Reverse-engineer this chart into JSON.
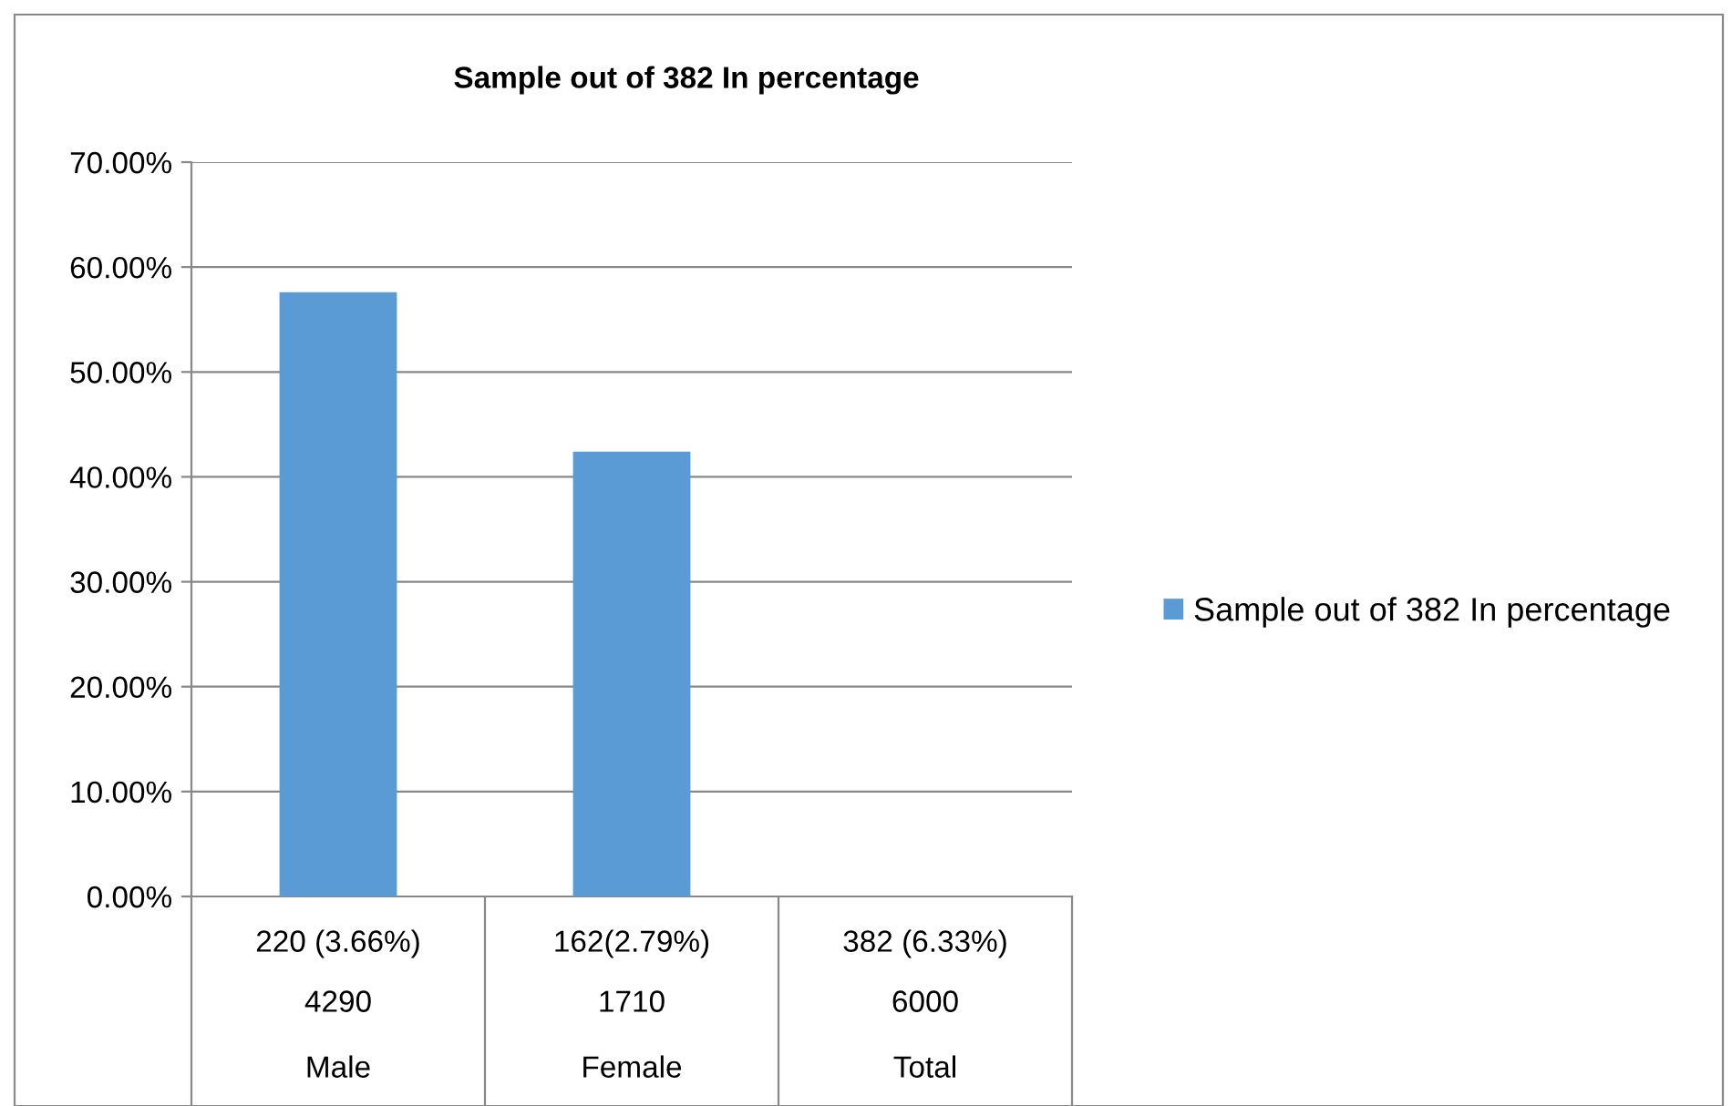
{
  "chart_data": {
    "type": "bar",
    "title": "Sample out of 382 In percentage",
    "categories": [
      "220 (3.66%)\n4290\nMale",
      "162(2.79%)\n1710\nFemale",
      "382 (6.33%)\n6000\nTotal"
    ],
    "series": [
      {
        "name": "Sample out of 382 In percentage",
        "color": "#5b9bd5",
        "values": [
          57.6,
          42.4,
          null
        ]
      }
    ],
    "ylim": [
      0,
      70
    ],
    "yticks": [
      {
        "value": 0,
        "label": "0.00%"
      },
      {
        "value": 10,
        "label": "10.00%"
      },
      {
        "value": 20,
        "label": "20.00%"
      },
      {
        "value": 30,
        "label": "30.00%"
      },
      {
        "value": 40,
        "label": "40.00%"
      },
      {
        "value": 50,
        "label": "50.00%"
      },
      {
        "value": 60,
        "label": "60.00%"
      },
      {
        "value": 70,
        "label": "70.00%"
      }
    ],
    "grid": "y",
    "legend": "right"
  }
}
